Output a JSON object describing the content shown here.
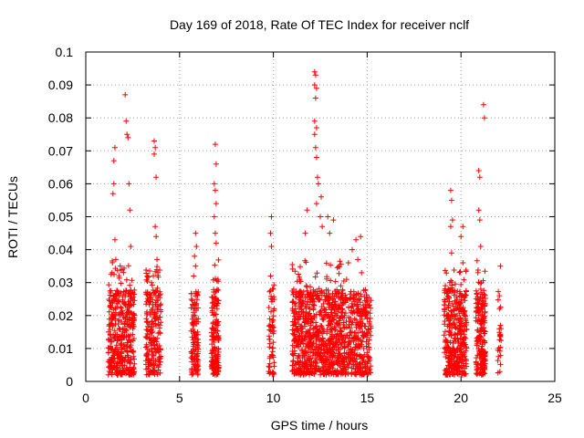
{
  "chart_data": {
    "type": "scatter",
    "title": "Day 169 of 2018, Rate Of TEC Index for receiver nclf",
    "xlabel": "GPS time / hours",
    "ylabel": "ROTI / TECUs",
    "xlim": [
      0,
      25
    ],
    "ylim": [
      0,
      0.1
    ],
    "grid": true,
    "x_ticks": [
      0,
      5,
      10,
      15,
      20,
      25
    ],
    "x_tick_labels": [
      "0",
      "5",
      "10",
      "15",
      "20",
      "25"
    ],
    "y_ticks": [
      0,
      0.01,
      0.02,
      0.03,
      0.04,
      0.05,
      0.06,
      0.07,
      0.08,
      0.09,
      0.1
    ],
    "y_tick_labels": [
      "0",
      "0.01",
      "0.02",
      "0.03",
      "0.04",
      "0.05",
      "0.06",
      "0.07",
      "0.08",
      "0.09",
      "0.1"
    ],
    "marker": "+",
    "marker_color": "#ff0000",
    "clusters": [
      {
        "x_start": 1.2,
        "x_end": 2.6,
        "count": 420,
        "peak": 0.087,
        "highs": [
          [
            2.1,
            0.087
          ],
          [
            2.15,
            0.079
          ],
          [
            2.2,
            0.075
          ],
          [
            2.25,
            0.074
          ],
          [
            1.55,
            0.071
          ],
          [
            1.5,
            0.067
          ],
          [
            1.5,
            0.06
          ],
          [
            1.45,
            0.057
          ],
          [
            2.3,
            0.06
          ],
          [
            2.35,
            0.052
          ],
          [
            2.4,
            0.041
          ],
          [
            1.55,
            0.043
          ],
          [
            1.4,
            0.033
          ],
          [
            1.6,
            0.037
          ]
        ]
      },
      {
        "x_start": 3.2,
        "x_end": 4.0,
        "count": 220,
        "peak": 0.073,
        "highs": [
          [
            3.65,
            0.073
          ],
          [
            3.7,
            0.071
          ],
          [
            3.65,
            0.069
          ],
          [
            3.75,
            0.062
          ],
          [
            3.7,
            0.047
          ],
          [
            3.75,
            0.044
          ],
          [
            3.8,
            0.037
          ],
          [
            3.85,
            0.033
          ],
          [
            3.5,
            0.03
          ],
          [
            3.3,
            0.027
          ]
        ]
      },
      {
        "x_start": 5.6,
        "x_end": 6.0,
        "count": 120,
        "peak": 0.045,
        "highs": [
          [
            5.85,
            0.045
          ],
          [
            5.9,
            0.041
          ],
          [
            5.8,
            0.038
          ],
          [
            5.85,
            0.035
          ],
          [
            5.75,
            0.032
          ]
        ]
      },
      {
        "x_start": 6.7,
        "x_end": 7.1,
        "count": 150,
        "peak": 0.072,
        "highs": [
          [
            6.9,
            0.072
          ],
          [
            6.95,
            0.066
          ],
          [
            6.85,
            0.06
          ],
          [
            6.9,
            0.058
          ],
          [
            6.95,
            0.054
          ],
          [
            6.85,
            0.05
          ],
          [
            6.9,
            0.045
          ],
          [
            6.95,
            0.042
          ]
        ]
      },
      {
        "x_start": 9.75,
        "x_end": 10.05,
        "count": 60,
        "peak": 0.05,
        "highs": [
          [
            9.9,
            0.05
          ],
          [
            9.85,
            0.045
          ],
          [
            9.9,
            0.041
          ],
          [
            9.85,
            0.032
          ],
          [
            9.95,
            0.028
          ]
        ]
      },
      {
        "x_start": 11.0,
        "x_end": 13.8,
        "count": 850,
        "peak": 0.094,
        "highs": [
          [
            12.2,
            0.094
          ],
          [
            12.25,
            0.093
          ],
          [
            12.2,
            0.09
          ],
          [
            12.3,
            0.089
          ],
          [
            12.25,
            0.086
          ],
          [
            12.2,
            0.079
          ],
          [
            12.3,
            0.077
          ],
          [
            12.2,
            0.075
          ],
          [
            12.25,
            0.071
          ],
          [
            12.3,
            0.068
          ],
          [
            12.35,
            0.062
          ],
          [
            12.4,
            0.06
          ],
          [
            12.3,
            0.054
          ],
          [
            12.55,
            0.056
          ],
          [
            12.5,
            0.05
          ],
          [
            11.8,
            0.052
          ],
          [
            12.9,
            0.05
          ],
          [
            13.2,
            0.049
          ],
          [
            11.7,
            0.045
          ],
          [
            13.0,
            0.045
          ],
          [
            12.6,
            0.047
          ]
        ]
      },
      {
        "x_start": 13.8,
        "x_end": 15.2,
        "count": 320,
        "peak": 0.044,
        "highs": [
          [
            14.65,
            0.044
          ],
          [
            14.4,
            0.043
          ],
          [
            14.2,
            0.04
          ],
          [
            14.5,
            0.037
          ],
          [
            14.7,
            0.033
          ],
          [
            14.0,
            0.036
          ],
          [
            13.9,
            0.031
          ]
        ]
      },
      {
        "x_start": 19.1,
        "x_end": 20.3,
        "count": 380,
        "peak": 0.058,
        "highs": [
          [
            19.45,
            0.058
          ],
          [
            19.5,
            0.055
          ],
          [
            19.55,
            0.049
          ],
          [
            19.45,
            0.047
          ],
          [
            20.1,
            0.047
          ],
          [
            19.5,
            0.039
          ],
          [
            20.0,
            0.044
          ],
          [
            20.1,
            0.036
          ],
          [
            19.4,
            0.03
          ]
        ]
      },
      {
        "x_start": 20.8,
        "x_end": 21.3,
        "count": 200,
        "peak": 0.084,
        "highs": [
          [
            21.2,
            0.084
          ],
          [
            21.25,
            0.08
          ],
          [
            20.95,
            0.064
          ],
          [
            21.0,
            0.062
          ],
          [
            20.95,
            0.052
          ],
          [
            21.0,
            0.049
          ],
          [
            21.05,
            0.041
          ],
          [
            20.9,
            0.033
          ]
        ]
      },
      {
        "x_start": 21.95,
        "x_end": 22.15,
        "count": 22,
        "peak": 0.035,
        "highs": [
          [
            22.1,
            0.035
          ],
          [
            22.05,
            0.026
          ],
          [
            22.1,
            0.017
          ],
          [
            22.05,
            0.016
          ]
        ]
      }
    ]
  }
}
